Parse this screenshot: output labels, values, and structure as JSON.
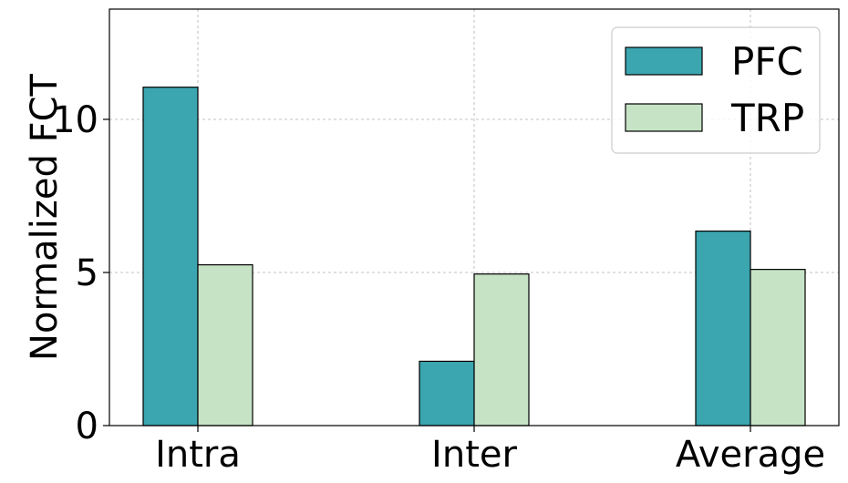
{
  "chart_data": {
    "type": "bar",
    "title": "",
    "xlabel": "",
    "ylabel": "Normalized FCT",
    "categories": [
      "Intra",
      "Inter",
      "Average"
    ],
    "series": [
      {
        "name": "PFC",
        "values": [
          11.05,
          2.1,
          6.35
        ],
        "color": "#3ba5b0"
      },
      {
        "name": "TRP",
        "values": [
          5.25,
          4.95,
          5.1
        ],
        "color": "#c6e3c6"
      }
    ],
    "ylim": [
      0,
      13.6
    ],
    "yticks": [
      0,
      5,
      10
    ],
    "ytick_labels": [
      "0",
      "5",
      "10"
    ],
    "grid": true,
    "legend_position": "top-right"
  }
}
